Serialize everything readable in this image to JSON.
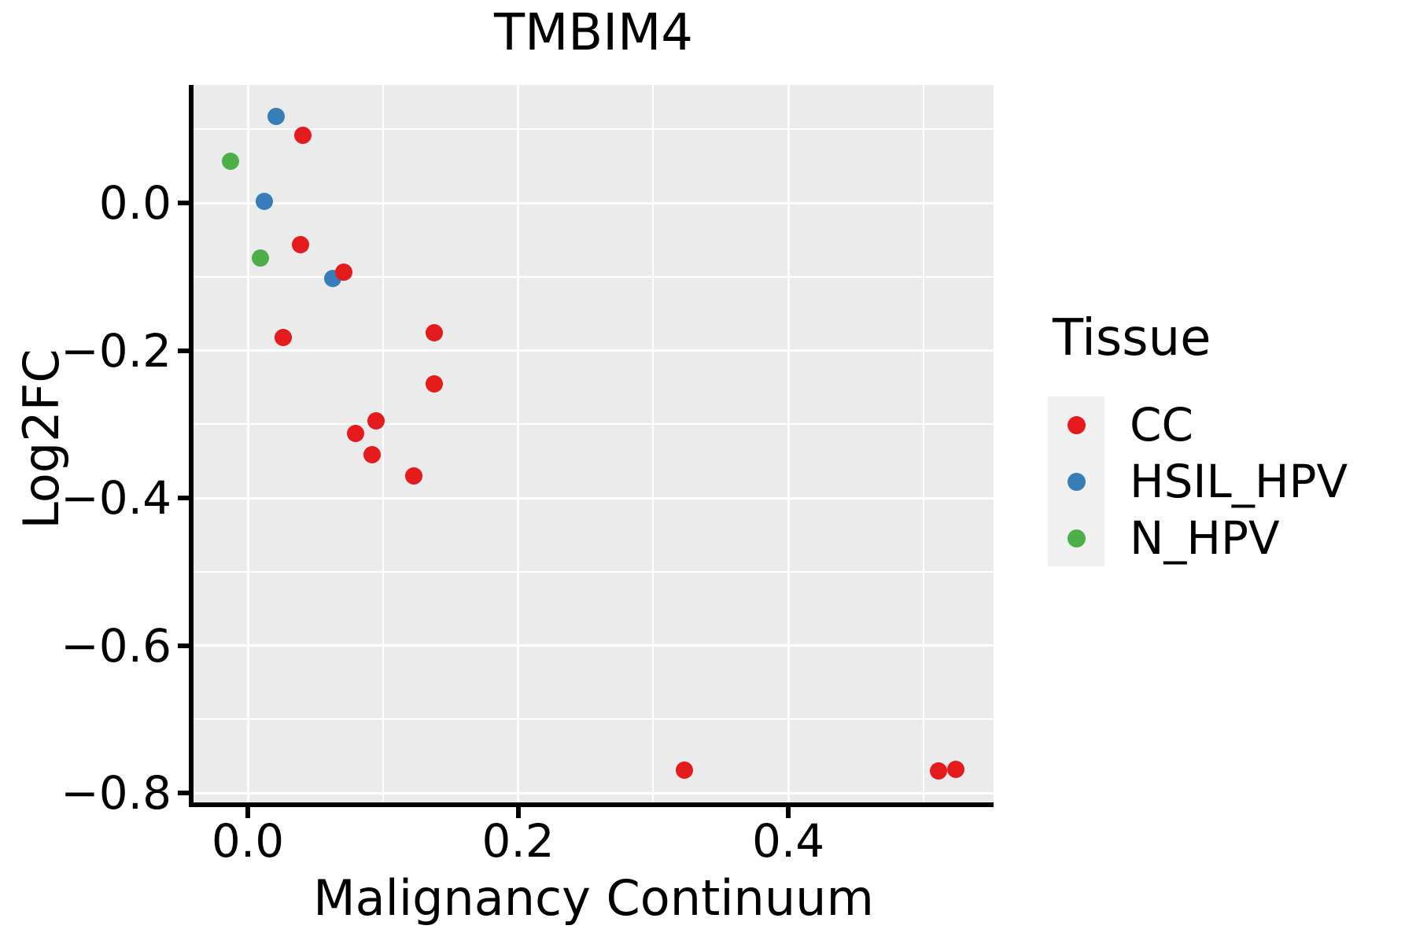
{
  "title": "TMBIM4",
  "colors": {
    "cc": "#E41A1C",
    "hsil_hpv": "#377EB8",
    "n_hpv": "#4DAF4A",
    "panel_background": "#EBEBEB",
    "gridline": "#FFFFFF",
    "axis": "#000000",
    "legend_key_background": "#F0F0F0",
    "text": "#000000"
  },
  "chart_data": {
    "type": "scatter",
    "title": "TMBIM4",
    "xlabel": "Malignancy Continuum",
    "ylabel": "Log2FC",
    "xlim": [
      -0.0402,
      0.5519
    ],
    "ylim": [
      -0.8128,
      0.16
    ],
    "grid": "major and minor white gridlines on gray panel",
    "x_ticks": [
      0.0,
      0.2,
      0.4
    ],
    "x_tick_labels": [
      "0.0",
      "0.2",
      "0.4"
    ],
    "x_minor_ticks": [
      0.1,
      0.3,
      0.5
    ],
    "y_ticks": [
      0.0,
      -0.2,
      -0.4,
      -0.6,
      -0.8
    ],
    "y_tick_labels": [
      "0.0",
      "−0.2",
      "−0.4",
      "−0.6",
      "−0.8"
    ],
    "y_minor_ticks": [
      0.1,
      -0.1,
      -0.3,
      -0.5,
      -0.7
    ],
    "legend": {
      "title": "Tissue",
      "position": "right",
      "entries": [
        {
          "label": "CC",
          "color": "#E41A1C"
        },
        {
          "label": "HSIL_HPV",
          "color": "#377EB8"
        },
        {
          "label": "N_HPV",
          "color": "#4DAF4A"
        }
      ]
    },
    "series": [
      {
        "name": "CC",
        "color": "#E41A1C",
        "points": [
          [
            0.041,
            0.092
          ],
          [
            0.039,
            -0.057
          ],
          [
            0.071,
            -0.094
          ],
          [
            0.026,
            -0.182
          ],
          [
            0.138,
            -0.176
          ],
          [
            0.138,
            -0.245
          ],
          [
            0.095,
            -0.295
          ],
          [
            0.08,
            -0.312
          ],
          [
            0.092,
            -0.341
          ],
          [
            0.123,
            -0.37
          ],
          [
            0.323,
            -0.769
          ],
          [
            0.511,
            -0.77
          ],
          [
            0.524,
            -0.768
          ]
        ]
      },
      {
        "name": "HSIL_HPV",
        "color": "#377EB8",
        "points": [
          [
            0.021,
            0.117
          ],
          [
            0.012,
            0.002
          ],
          [
            0.063,
            -0.102
          ]
        ]
      },
      {
        "name": "N_HPV",
        "color": "#4DAF4A",
        "points": [
          [
            -0.013,
            0.057
          ],
          [
            0.009,
            -0.075
          ]
        ]
      }
    ]
  }
}
